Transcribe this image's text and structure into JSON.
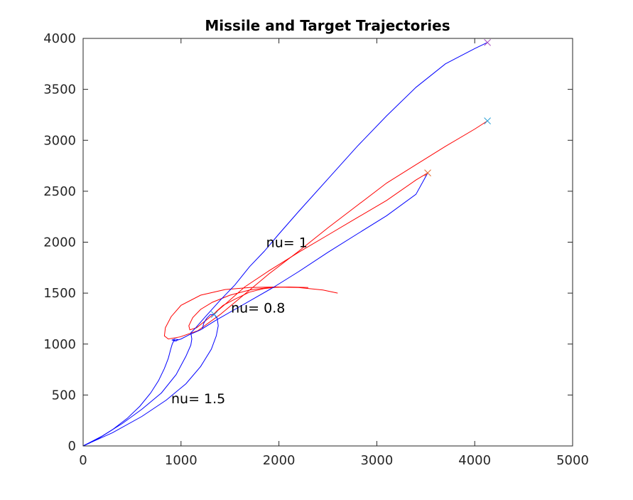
{
  "chart_data": {
    "type": "line",
    "title": "Missile and Target Trajectories",
    "xlabel": "",
    "ylabel": "",
    "xlim": [
      0,
      5000
    ],
    "ylim": [
      0,
      4000
    ],
    "x_ticks": [
      0,
      1000,
      2000,
      3000,
      4000,
      5000
    ],
    "y_ticks": [
      0,
      500,
      1000,
      1500,
      2000,
      2500,
      3000,
      3500,
      4000
    ],
    "grid": false,
    "colors": {
      "missile": "#0000ff",
      "target": "#ff0000",
      "end_purple": "#a64dbf",
      "end_cyan": "#2a9fd6",
      "end_orange": "#e36b2c"
    },
    "series": [
      {
        "color": "#ff0000",
        "x": [
          2600,
          2450,
          2200,
          1950,
          1700,
          1450,
          1200,
          1000,
          900,
          840,
          830,
          870,
          990,
          1170,
          1400,
          1650,
          1900,
          2200,
          2500,
          2800,
          3100,
          3400,
          3700,
          4000,
          4130
        ],
        "y": [
          1500,
          1530,
          1555,
          1560,
          1555,
          1535,
          1480,
          1380,
          1270,
          1160,
          1080,
          1050,
          1070,
          1130,
          1290,
          1490,
          1690,
          1910,
          2140,
          2360,
          2580,
          2760,
          2940,
          3110,
          3190
        ]
      },
      {
        "color": "#ff0000",
        "x": [
          2300,
          2100,
          1900,
          1700,
          1500,
          1320,
          1200,
          1120,
          1080,
          1090,
          1160,
          1290,
          1450,
          1650,
          1900,
          2200,
          2500,
          2800,
          3100,
          3400,
          3520
        ],
        "y": [
          1555,
          1560,
          1555,
          1530,
          1480,
          1410,
          1340,
          1260,
          1180,
          1140,
          1160,
          1260,
          1390,
          1560,
          1720,
          1900,
          2070,
          2240,
          2410,
          2610,
          2680
        ]
      },
      {
        "color": "#ff0000",
        "x": [
          2000,
          1850,
          1700,
          1550,
          1430,
          1360,
          1340
        ],
        "y": [
          1560,
          1545,
          1510,
          1440,
          1380,
          1320,
          1290
        ]
      },
      {
        "color": "#0000ff",
        "x": [
          0,
          150,
          300,
          450,
          580,
          690,
          770,
          830,
          870,
          895,
          910,
          930,
          950,
          960,
          965,
          935,
          910,
          935,
          1000,
          1080,
          1200,
          1350,
          1550,
          1750,
          1950,
          2200,
          2500,
          2800,
          3100,
          3400,
          3520
        ],
        "y": [
          0,
          70,
          160,
          270,
          390,
          520,
          640,
          760,
          860,
          950,
          1000,
          1040,
          1030,
          1040,
          1045,
          1050,
          1040,
          1030,
          1050,
          1090,
          1140,
          1230,
          1340,
          1450,
          1560,
          1710,
          1900,
          2080,
          2260,
          2470,
          2680
        ]
      },
      {
        "color": "#0000ff",
        "x": [
          0,
          200,
          400,
          600,
          800,
          950,
          1050,
          1100,
          1110,
          1100,
          1150,
          1250,
          1400,
          1550,
          1700,
          1850,
          2000,
          2200,
          2500,
          2800,
          3100,
          3400,
          3700,
          4000,
          4130
        ],
        "y": [
          0,
          100,
          220,
          360,
          520,
          700,
          880,
          990,
          1050,
          1110,
          1160,
          1270,
          1430,
          1580,
          1760,
          1910,
          2080,
          2300,
          2620,
          2940,
          3240,
          3520,
          3750,
          3900,
          3960
        ]
      },
      {
        "color": "#0000ff",
        "x": [
          0,
          300,
          600,
          850,
          1050,
          1200,
          1310,
          1360,
          1380,
          1370,
          1340,
          1300,
          1260,
          1230,
          1220
        ],
        "y": [
          0,
          130,
          290,
          450,
          610,
          780,
          950,
          1080,
          1180,
          1250,
          1290,
          1290,
          1250,
          1200,
          1150
        ]
      }
    ],
    "end_markers": [
      {
        "x": 4130,
        "y": 3960,
        "color": "#a64dbf"
      },
      {
        "x": 4130,
        "y": 3190,
        "color": "#2a9fd6"
      },
      {
        "x": 3520,
        "y": 2680,
        "color": "#e36b2c"
      },
      {
        "x": 1340,
        "y": 1290,
        "color": "#2a9fd6"
      }
    ],
    "annotations": [
      {
        "text": "nu= 1",
        "x": 1870,
        "y": 1950
      },
      {
        "text": "nu= 0.8",
        "x": 1510,
        "y": 1310
      },
      {
        "text": "nu= 1.5",
        "x": 900,
        "y": 420
      }
    ]
  }
}
